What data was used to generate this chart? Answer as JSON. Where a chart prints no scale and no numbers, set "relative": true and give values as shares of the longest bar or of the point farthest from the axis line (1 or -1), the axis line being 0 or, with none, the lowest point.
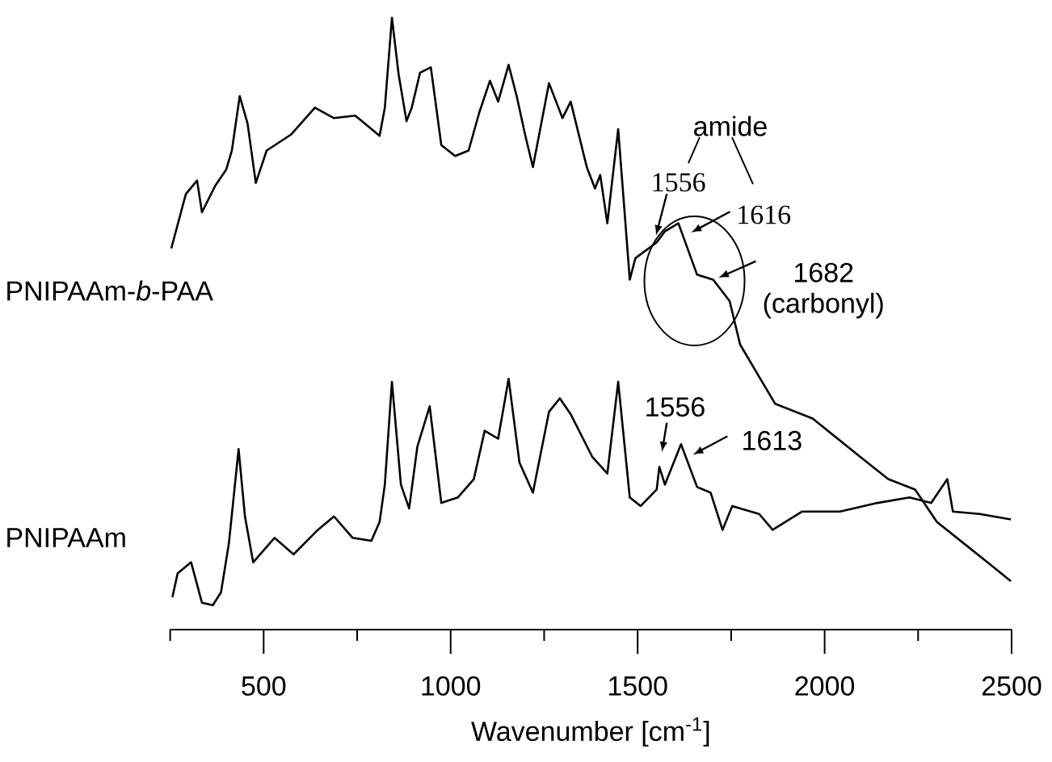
{
  "chart_data": {
    "type": "line",
    "relative": true,
    "xlabel": "Wavenumber [cm$^{-1}$]",
    "xlim": [
      250,
      2500
    ],
    "xticks": [
      {
        "value": 250,
        "label": null
      },
      500,
      {
        "value": 750,
        "label": null
      },
      1000,
      {
        "value": 1250,
        "label": null
      },
      1500,
      {
        "value": 1750,
        "label": null
      },
      2000,
      {
        "value": 2250,
        "label": null
      },
      2500
    ],
    "series": [
      {
        "name": "PNIPAAm-*b*-PAA",
        "color": "#000000",
        "x": [
          253,
          292,
          322,
          335,
          371,
          400,
          415,
          436,
          457,
          479,
          508,
          573,
          637,
          688,
          745,
          810,
          824,
          843,
          861,
          882,
          896,
          918,
          947,
          975,
          1012,
          1048,
          1076,
          1105,
          1127,
          1155,
          1177,
          1199,
          1220,
          1263,
          1299,
          1321,
          1364,
          1386,
          1400,
          1419,
          1433,
          1448,
          1479,
          1494,
          1551,
          1573,
          1609,
          1659,
          1702,
          1746,
          1774,
          1825,
          1868,
          1968,
          2098,
          2170,
          2242,
          2300,
          2372,
          2444,
          2498
        ],
        "values": [
          0.623,
          0.712,
          0.734,
          0.682,
          0.726,
          0.752,
          0.783,
          0.872,
          0.827,
          0.73,
          0.783,
          0.809,
          0.853,
          0.836,
          0.84,
          0.807,
          0.853,
          1.0,
          0.907,
          0.831,
          0.853,
          0.91,
          0.919,
          0.792,
          0.774,
          0.783,
          0.844,
          0.897,
          0.863,
          0.923,
          0.871,
          0.809,
          0.756,
          0.893,
          0.836,
          0.863,
          0.756,
          0.721,
          0.743,
          0.664,
          0.739,
          0.818,
          0.572,
          0.607,
          0.633,
          0.651,
          0.664,
          0.58,
          0.572,
          0.537,
          0.466,
          0.413,
          0.369,
          0.345,
          0.281,
          0.246,
          0.229,
          0.176,
          0.141,
          0.106,
          0.079
        ]
      },
      {
        "name": "PNIPAAm",
        "color": "#000000",
        "x": [
          256,
          270,
          306,
          335,
          364,
          386,
          407,
          433,
          450,
          472,
          529,
          580,
          645,
          688,
          738,
          788,
          810,
          824,
          843,
          867,
          889,
          911,
          944,
          975,
          1019,
          1062,
          1091,
          1127,
          1155,
          1184,
          1220,
          1263,
          1292,
          1321,
          1379,
          1419,
          1448,
          1479,
          1508,
          1551,
          1558,
          1573,
          1616,
          1659,
          1695,
          1727,
          1753,
          1825,
          1861,
          1940,
          2041,
          2141,
          2227,
          2285,
          2328,
          2343,
          2415,
          2498
        ],
        "values": [
          0.053,
          0.092,
          0.11,
          0.044,
          0.04,
          0.061,
          0.141,
          0.295,
          0.185,
          0.11,
          0.15,
          0.123,
          0.163,
          0.185,
          0.15,
          0.145,
          0.176,
          0.237,
          0.405,
          0.237,
          0.198,
          0.299,
          0.365,
          0.207,
          0.216,
          0.246,
          0.325,
          0.312,
          0.41,
          0.273,
          0.224,
          0.356,
          0.378,
          0.352,
          0.282,
          0.255,
          0.405,
          0.216,
          0.202,
          0.229,
          0.266,
          0.237,
          0.303,
          0.233,
          0.224,
          0.163,
          0.202,
          0.189,
          0.163,
          0.193,
          0.193,
          0.207,
          0.216,
          0.207,
          0.246,
          0.193,
          0.189,
          0.18
        ]
      }
    ],
    "annotations": [
      "amide",
      "1556",
      "1616",
      "1682 (carbonyl)",
      "1556",
      "1613"
    ]
  }
}
